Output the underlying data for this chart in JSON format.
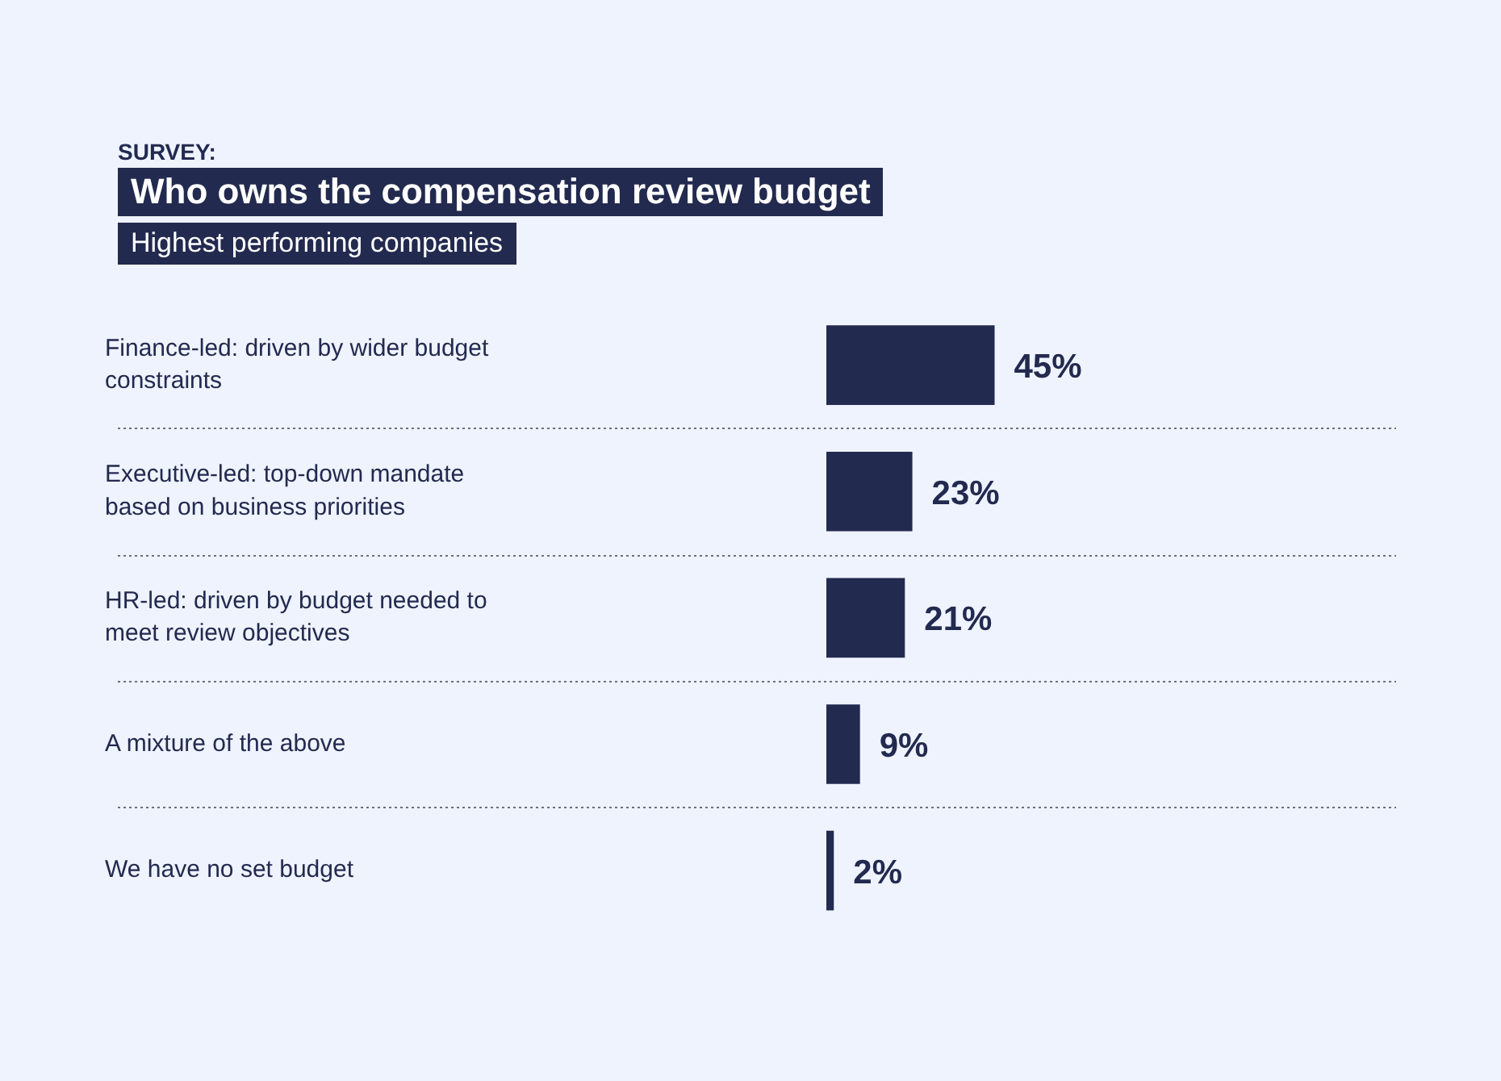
{
  "chart_data": {
    "type": "bar",
    "orientation": "horizontal",
    "title": "Who owns the compensation review budget",
    "subtitle": "Highest performing companies",
    "annotations": [
      "SURVEY:"
    ],
    "categories": [
      "Finance-led: driven by wider budget constraints",
      "Executive-led: top-down mandate based on business priorities",
      "HR-led: driven by budget needed to meet review objectives",
      "A mixture of the above",
      "We have no set budget"
    ],
    "values": [
      45,
      23,
      21,
      9,
      2
    ],
    "color": "#232a4f",
    "value_labels": [
      "45%",
      "23%",
      "21%",
      "9%",
      "2%"
    ],
    "grid": "y",
    "legend": false
  }
}
